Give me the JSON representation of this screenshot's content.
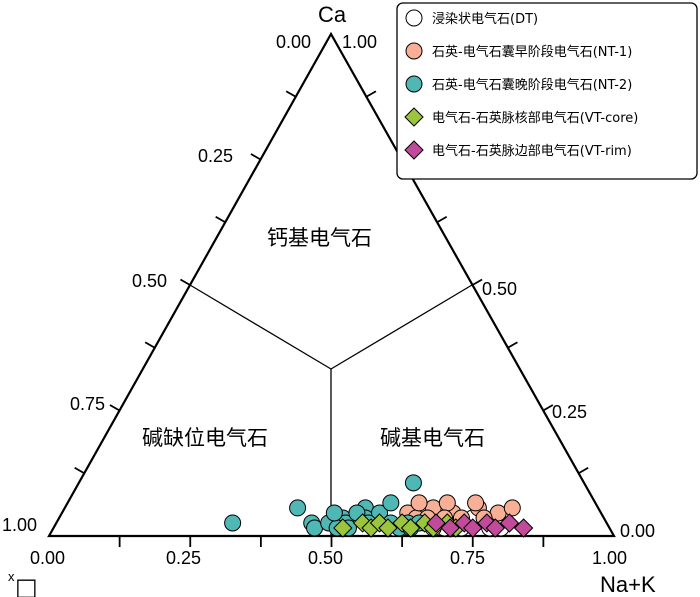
{
  "chart_data": {
    "type": "ternary-scatter",
    "apex_labels": {
      "top": "Ca",
      "bottom_right": "Na+K",
      "bottom_left_superscript": "x",
      "bottom_left": "□"
    },
    "tick_values": [
      "0.00",
      "0.25",
      "0.50",
      "0.75",
      "1.00"
    ],
    "regions": [
      "钙基电气石",
      "碱缺位电气石",
      "碱基电气石"
    ],
    "legend_placement": "top-right",
    "series": [
      {
        "name": "浸染状电气石(DT)",
        "marker": "circle",
        "fill": "#ffffff",
        "stroke": "#000000",
        "points": [
          {
            "x": 0.66,
            "y": 0.01
          },
          {
            "x": 0.7,
            "y": 0.0
          },
          {
            "x": 0.73,
            "y": 0.0
          },
          {
            "x": 0.68,
            "y": 0.0
          },
          {
            "x": 0.75,
            "y": 0.01
          },
          {
            "x": 0.78,
            "y": 0.0
          },
          {
            "x": 0.63,
            "y": 0.01
          },
          {
            "x": 0.71,
            "y": 0.02
          },
          {
            "x": 0.67,
            "y": 0.02
          },
          {
            "x": 0.8,
            "y": 0.0
          },
          {
            "x": 0.61,
            "y": 0.0
          },
          {
            "x": 0.74,
            "y": 0.02
          }
        ]
      },
      {
        "name": "石英-电气石囊早阶段电气石(NT-1)",
        "marker": "circle",
        "fill": "#f7b096",
        "stroke": "#000000",
        "points": [
          {
            "x": 0.62,
            "y": 0.03
          },
          {
            "x": 0.66,
            "y": 0.04
          },
          {
            "x": 0.7,
            "y": 0.03
          },
          {
            "x": 0.74,
            "y": 0.04
          },
          {
            "x": 0.78,
            "y": 0.03
          },
          {
            "x": 0.64,
            "y": 0.02
          },
          {
            "x": 0.72,
            "y": 0.02
          },
          {
            "x": 0.76,
            "y": 0.02
          },
          {
            "x": 0.68,
            "y": 0.05
          },
          {
            "x": 0.63,
            "y": 0.05
          },
          {
            "x": 0.8,
            "y": 0.04
          },
          {
            "x": 0.73,
            "y": 0.05
          },
          {
            "x": 0.69,
            "y": 0.02
          },
          {
            "x": 0.66,
            "y": 0.02
          }
        ]
      },
      {
        "name": "石英-电气石囊晚阶段电气石(NT-2)",
        "marker": "circle",
        "fill": "#4fb8b4",
        "stroke": "#000000",
        "points": [
          {
            "x": 0.32,
            "y": 0.01
          },
          {
            "x": 0.42,
            "y": 0.04
          },
          {
            "x": 0.46,
            "y": 0.01
          },
          {
            "x": 0.47,
            "y": 0.0
          },
          {
            "x": 0.49,
            "y": 0.01
          },
          {
            "x": 0.51,
            "y": 0.02
          },
          {
            "x": 0.52,
            "y": 0.01
          },
          {
            "x": 0.53,
            "y": 0.0
          },
          {
            "x": 0.54,
            "y": 0.04
          },
          {
            "x": 0.55,
            "y": 0.02
          },
          {
            "x": 0.57,
            "y": 0.03
          },
          {
            "x": 0.6,
            "y": 0.09
          },
          {
            "x": 0.51,
            "y": 0.0
          },
          {
            "x": 0.49,
            "y": 0.03
          },
          {
            "x": 0.56,
            "y": 0.01
          },
          {
            "x": 0.53,
            "y": 0.03
          },
          {
            "x": 0.58,
            "y": 0.05
          },
          {
            "x": 0.6,
            "y": 0.01
          },
          {
            "x": 0.62,
            "y": 0.0
          },
          {
            "x": 0.63,
            "y": 0.01
          },
          {
            "x": 0.64,
            "y": 0.0
          },
          {
            "x": 0.65,
            "y": 0.01
          }
        ]
      },
      {
        "name": "电气石-石英脉核部电气石(VT-core)",
        "marker": "diamond",
        "fill": "#9bc53d",
        "stroke": "#000000",
        "points": [
          {
            "x": 0.52,
            "y": 0.0
          },
          {
            "x": 0.55,
            "y": 0.01
          },
          {
            "x": 0.57,
            "y": 0.0
          },
          {
            "x": 0.58,
            "y": 0.01
          },
          {
            "x": 0.6,
            "y": 0.0
          },
          {
            "x": 0.62,
            "y": 0.01
          },
          {
            "x": 0.64,
            "y": 0.0
          },
          {
            "x": 0.66,
            "y": 0.01
          },
          {
            "x": 0.68,
            "y": 0.0
          },
          {
            "x": 0.7,
            "y": 0.01
          },
          {
            "x": 0.72,
            "y": 0.0
          }
        ]
      },
      {
        "name": "电气石-石英脉边部电气石(VT-rim)",
        "marker": "diamond",
        "fill": "#c24a9a",
        "stroke": "#000000",
        "points": [
          {
            "x": 0.68,
            "y": 0.01
          },
          {
            "x": 0.71,
            "y": 0.0
          },
          {
            "x": 0.73,
            "y": 0.01
          },
          {
            "x": 0.75,
            "y": 0.0
          },
          {
            "x": 0.77,
            "y": 0.01
          },
          {
            "x": 0.79,
            "y": 0.0
          },
          {
            "x": 0.81,
            "y": 0.01
          },
          {
            "x": 0.84,
            "y": 0.0
          }
        ]
      }
    ]
  }
}
